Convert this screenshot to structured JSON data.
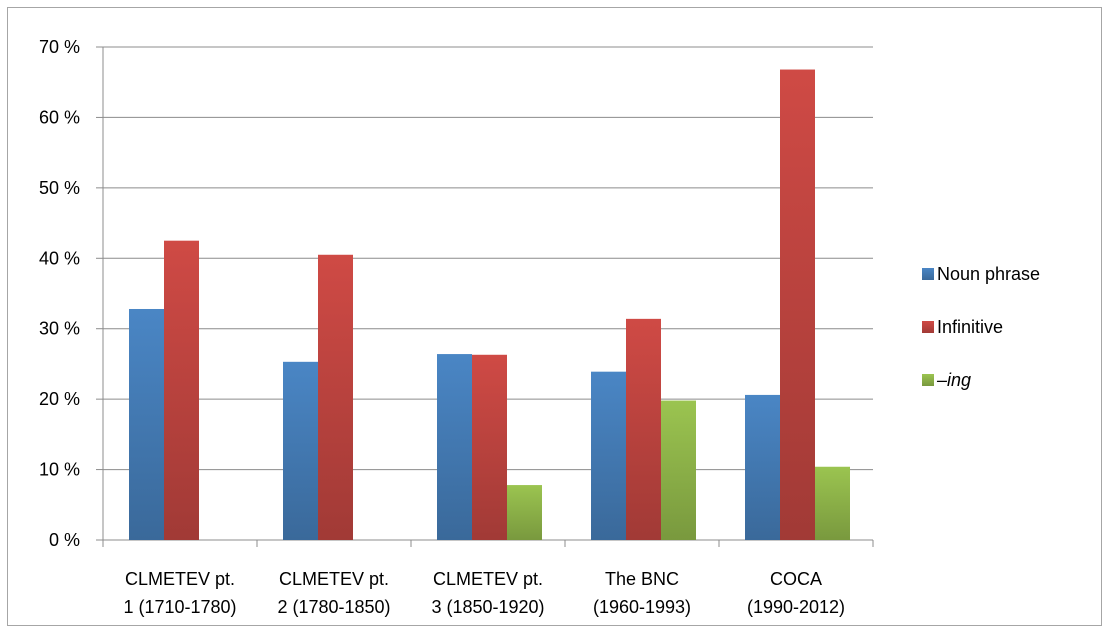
{
  "chart_data": {
    "type": "bar",
    "categories": [
      [
        "CLMETEV pt.",
        "1 (1710-1780)"
      ],
      [
        "CLMETEV pt.",
        "2 (1780-1850)"
      ],
      [
        "CLMETEV pt.",
        "3 (1850-1920)"
      ],
      [
        "The BNC",
        "(1960-1993)"
      ],
      [
        "COCA",
        "(1990-2012)"
      ]
    ],
    "series": [
      {
        "name": "Noun phrase",
        "values": [
          32.8,
          25.3,
          26.4,
          23.9,
          20.6
        ],
        "color": "#4a86c5",
        "italic": false
      },
      {
        "name": "Infinitive",
        "values": [
          42.5,
          40.5,
          26.3,
          31.4,
          66.8
        ],
        "color": "#cf4a45",
        "italic": false
      },
      {
        "name": "–ing",
        "values": [
          null,
          null,
          7.8,
          19.8,
          10.4
        ],
        "color": "#9bc450",
        "italic": true
      }
    ],
    "ylim": [
      0,
      70
    ],
    "yticks": [
      "0 %",
      "10 %",
      "20 %",
      "30 %",
      "40 %",
      "50 %",
      "60 %",
      "70 %"
    ],
    "grid": true,
    "legend_position": "right",
    "title": "",
    "xlabel": "",
    "ylabel": ""
  }
}
